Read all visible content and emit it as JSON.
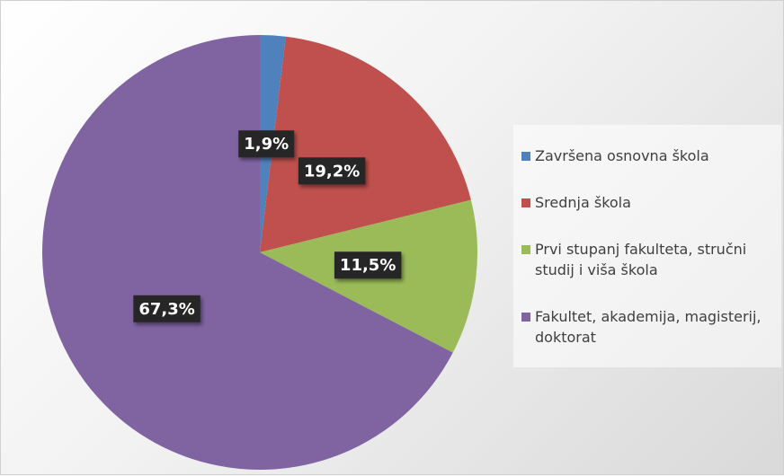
{
  "chart_data": {
    "type": "pie",
    "categories": [
      "Završena osnovna škola",
      "Srednja škola",
      "Prvi stupanj fakulteta, stručni studij i viša škola",
      "Fakultet, akademija, magisterij, doktorat"
    ],
    "values": [
      1.9,
      19.2,
      11.5,
      67.3
    ],
    "value_labels": [
      "1,9%",
      "19,2%",
      "11,5%",
      "67,3%"
    ],
    "colors": [
      "#4f81bd",
      "#c0504d",
      "#9bbb59",
      "#8064a2"
    ],
    "legend": "right"
  }
}
